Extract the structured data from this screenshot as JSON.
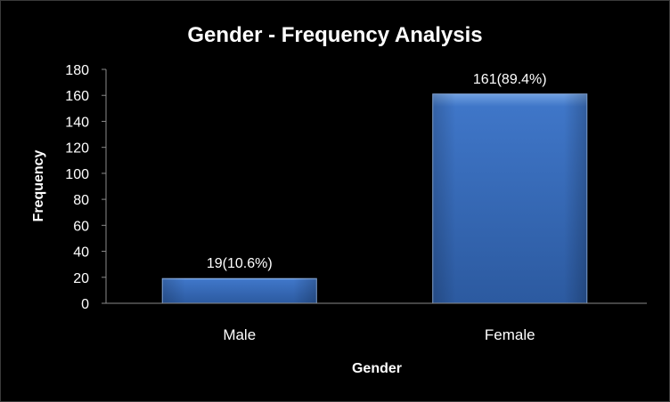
{
  "chart_data": {
    "type": "bar",
    "title": "Gender - Frequency Analysis",
    "xlabel": "Gender",
    "ylabel": "Frequency",
    "categories": [
      "Male",
      "Female"
    ],
    "values": [
      19,
      161
    ],
    "data_labels": [
      "19(10.6%)",
      "161(89.4%)"
    ],
    "ylim": [
      0,
      180
    ],
    "yticks": [
      0,
      20,
      40,
      60,
      80,
      100,
      120,
      140,
      160,
      180
    ],
    "grid": false,
    "legend": "none",
    "colors": {
      "background": "#000000",
      "bar_top": "#6f9fe0",
      "bar_mid": "#3f76c8",
      "bar_bottom": "#2c5aa0",
      "bar_edge": "#8fb5ec",
      "text": "#ffffff",
      "axis": "#8a8a8a"
    }
  }
}
